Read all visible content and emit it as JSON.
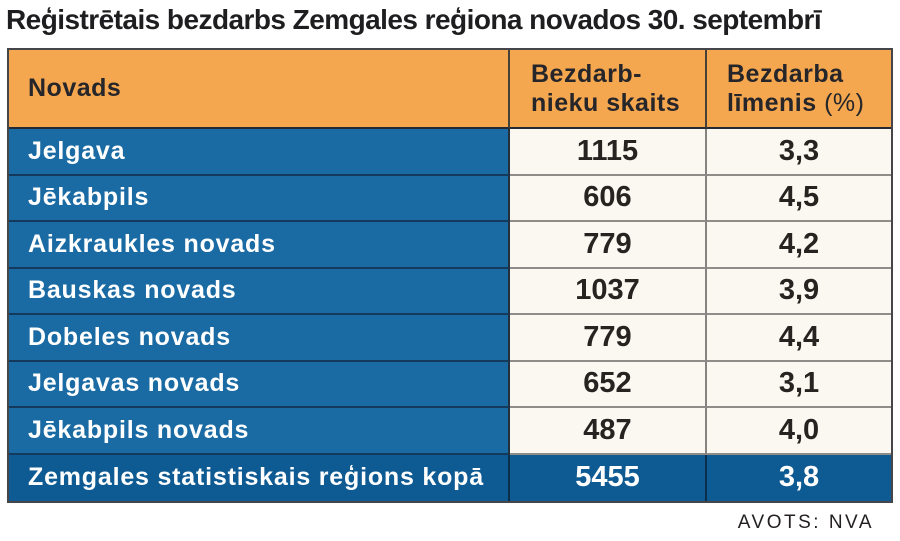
{
  "title": "Reģistrētais bezdarbs Zemgales reģiona novados 30. septembrī",
  "source": "AVOTS: NVA",
  "colors": {
    "header_bg": "#f5a74f",
    "row_bg": "#1a6ba3",
    "total_bg": "#0e5a92",
    "value_bg": "#fbf8f2",
    "text_dark": "#26262a",
    "text_light": "#ffffff"
  },
  "chart_data": {
    "type": "table",
    "title": "Reģistrētais bezdarbs Zemgales reģiona novados 30. septembrī",
    "columns": {
      "col1": "Novads",
      "col2_line1": "Bezdarb-",
      "col2_line2": "nieku skaits",
      "col3_line1": "Bezdarba",
      "col3_line2": "līmenis",
      "col3_unit": "(%)"
    },
    "rows": [
      {
        "name": "Jelgava",
        "count": "1115",
        "rate": "3,3"
      },
      {
        "name": "Jēkabpils",
        "count": "606",
        "rate": "4,5"
      },
      {
        "name": "Aizkraukles novads",
        "count": "779",
        "rate": "4,2"
      },
      {
        "name": "Bauskas novads",
        "count": "1037",
        "rate": "3,9"
      },
      {
        "name": "Dobeles novads",
        "count": "779",
        "rate": "4,4"
      },
      {
        "name": "Jelgavas novads",
        "count": "652",
        "rate": "3,1"
      },
      {
        "name": "Jēkabpils novads",
        "count": "487",
        "rate": "4,0"
      }
    ],
    "total": {
      "name": "Zemgales statistiskais reģions kopā",
      "count": "5455",
      "rate": "3,8"
    }
  }
}
